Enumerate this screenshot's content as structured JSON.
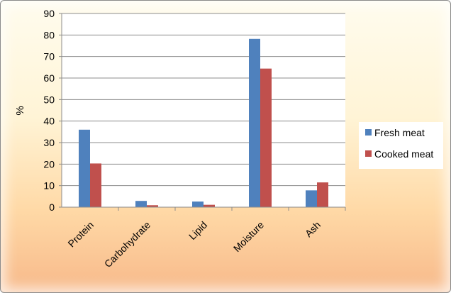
{
  "chart_data": {
    "type": "bar",
    "categories": [
      "Protein",
      "Carbohydrate",
      "Lipid",
      "Moisture",
      "Ash"
    ],
    "series": [
      {
        "name": "Fresh meat",
        "values": [
          36,
          2.9,
          2.6,
          78.2,
          7.8
        ],
        "color": "#4f81bd"
      },
      {
        "name": "Cooked meat",
        "values": [
          20.3,
          0.9,
          1.1,
          64.4,
          11.5
        ],
        "color": "#c0504d"
      }
    ],
    "ylabel": "%",
    "ylim": [
      0,
      90
    ],
    "yticks": [
      0,
      10,
      20,
      30,
      40,
      50,
      60,
      70,
      80,
      90
    ],
    "grid": true,
    "legend": "right"
  }
}
